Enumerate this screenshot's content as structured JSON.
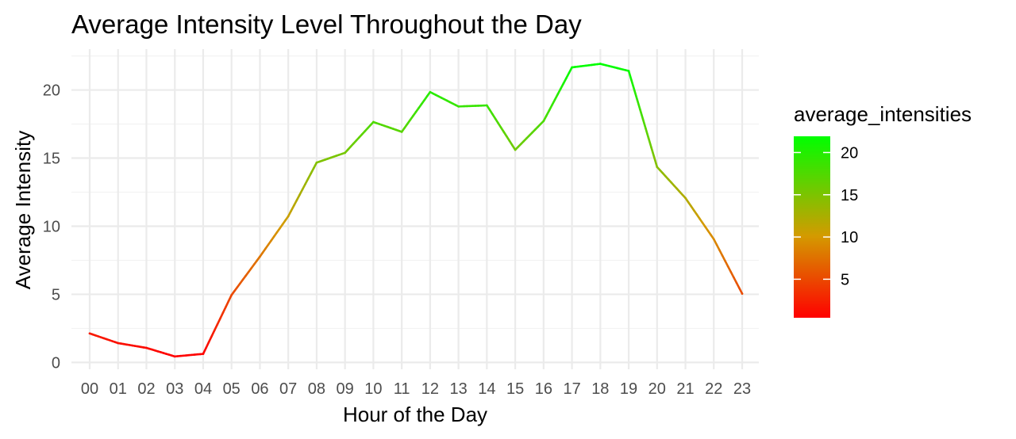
{
  "chart_data": {
    "type": "line",
    "title": "Average Intensity Level Throughout the Day",
    "xlabel": "Hour of the Day",
    "ylabel": "Average Intensity",
    "categories": [
      "00",
      "01",
      "02",
      "03",
      "04",
      "05",
      "06",
      "07",
      "08",
      "09",
      "10",
      "11",
      "12",
      "13",
      "14",
      "15",
      "16",
      "17",
      "18",
      "19",
      "20",
      "21",
      "22",
      "23"
    ],
    "series": [
      {
        "values": [
          2.13,
          1.42,
          1.07,
          0.44,
          0.63,
          4.95,
          7.77,
          10.73,
          14.67,
          15.39,
          17.65,
          16.93,
          19.85,
          18.79,
          18.87,
          15.61,
          17.72,
          21.66,
          21.92,
          21.4,
          14.35,
          12.07,
          9.05,
          5.05
        ]
      }
    ],
    "ylim": [
      -0.5,
      23.0
    ],
    "yticks": [
      0,
      5,
      10,
      15,
      20
    ],
    "grid": true,
    "legend": {
      "title": "average_intensities",
      "position": "right",
      "ticks": [
        5,
        10,
        15,
        20
      ],
      "range": [
        0.44,
        21.92
      ],
      "colors": {
        "low": "#ff0000",
        "mid": "#d49a00",
        "high": "#00ff00"
      }
    }
  }
}
